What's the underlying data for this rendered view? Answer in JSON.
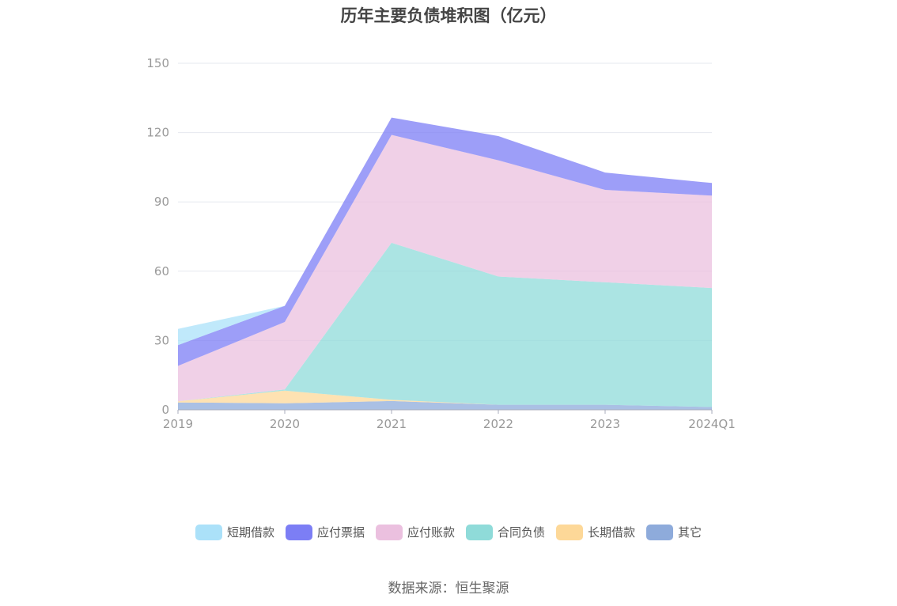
{
  "chart_data": {
    "type": "area",
    "stacked": true,
    "title": "历年主要负债堆积图（亿元）",
    "categories": [
      "2019",
      "2020",
      "2021",
      "2022",
      "2023",
      "2024Q1"
    ],
    "ylim": [
      0,
      150
    ],
    "yticks": [
      0,
      30,
      60,
      90,
      120,
      150
    ],
    "grid": true,
    "legend_position": "bottom",
    "series": [
      {
        "name": "其它",
        "color": "#8eabdb",
        "values": [
          3.2,
          2.8,
          3.8,
          2.2,
          2.2,
          1.2
        ]
      },
      {
        "name": "长期借款",
        "color": "#fdd898",
        "values": [
          0.5,
          5.5,
          0.5,
          0.0,
          0.0,
          0.0
        ]
      },
      {
        "name": "合同负债",
        "color": "#8fdbd9",
        "values": [
          0.0,
          0.5,
          68.0,
          55.5,
          53.0,
          51.5
        ]
      },
      {
        "name": "应付账款",
        "color": "#ebc0df",
        "values": [
          15.3,
          29.2,
          46.7,
          50.3,
          40.0,
          40.0
        ]
      },
      {
        "name": "应付票据",
        "color": "#7c7ef5",
        "values": [
          9.0,
          7.0,
          7.5,
          10.5,
          7.5,
          5.5
        ]
      },
      {
        "name": "短期借款",
        "color": "#abe1f9",
        "values": [
          7.0,
          0.0,
          0.0,
          0.0,
          0.0,
          0.0
        ]
      }
    ]
  },
  "legend_order": [
    "短期借款",
    "应付票据",
    "应付账款",
    "合同负债",
    "长期借款",
    "其它"
  ],
  "source_note": "数据来源：恒生聚源"
}
